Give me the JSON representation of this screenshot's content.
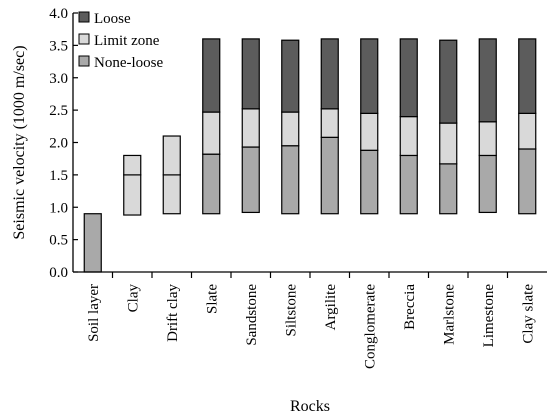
{
  "chart_data": {
    "type": "bar",
    "stacked": true,
    "xlabel": "Rocks",
    "ylabel": "Seismic velocity (1000 m/sec)",
    "ylim": [
      0,
      4.0
    ],
    "yticks": [
      "0.0",
      "0.5",
      "1.0",
      "1.5",
      "2.0",
      "2.5",
      "3.0",
      "3.5",
      "4.0"
    ],
    "grid": false,
    "legend_position": "top-left",
    "categories": [
      "Soil layer",
      "Clay",
      "Drift clay",
      "Slate",
      "Sandstone",
      "Siltstone",
      "Argilite",
      "Conglomerate",
      "Breccia",
      "Marlstone",
      "Limestone",
      "Clay slate"
    ],
    "legend": [
      {
        "name": "Loose",
        "color": "#5c5c5c"
      },
      {
        "name": "Limit zone",
        "color": "#d9d9d9"
      },
      {
        "name": "None-loose",
        "color": "#a9a9a9"
      }
    ],
    "bars": [
      {
        "segments": [
          {
            "series": "None-loose",
            "from": 0.0,
            "to": 0.9
          }
        ]
      },
      {
        "segments": [
          {
            "series": "Limit zone",
            "from": 0.88,
            "to": 1.5
          },
          {
            "series": "Limit zone",
            "from": 1.5,
            "to": 1.8
          }
        ]
      },
      {
        "segments": [
          {
            "series": "Limit zone",
            "from": 0.9,
            "to": 1.5
          },
          {
            "series": "Limit zone",
            "from": 1.5,
            "to": 2.1
          }
        ]
      },
      {
        "segments": [
          {
            "series": "None-loose",
            "from": 0.9,
            "to": 1.82
          },
          {
            "series": "Limit zone",
            "from": 1.82,
            "to": 2.47
          },
          {
            "series": "Loose",
            "from": 2.47,
            "to": 3.6
          }
        ]
      },
      {
        "segments": [
          {
            "series": "None-loose",
            "from": 0.92,
            "to": 1.93
          },
          {
            "series": "Limit zone",
            "from": 1.93,
            "to": 2.52
          },
          {
            "series": "Loose",
            "from": 2.52,
            "to": 3.6
          }
        ]
      },
      {
        "segments": [
          {
            "series": "None-loose",
            "from": 0.9,
            "to": 1.95
          },
          {
            "series": "Limit zone",
            "from": 1.95,
            "to": 2.47
          },
          {
            "series": "Loose",
            "from": 2.47,
            "to": 3.58
          }
        ]
      },
      {
        "segments": [
          {
            "series": "None-loose",
            "from": 0.9,
            "to": 2.08
          },
          {
            "series": "Limit zone",
            "from": 2.08,
            "to": 2.52
          },
          {
            "series": "Loose",
            "from": 2.52,
            "to": 3.6
          }
        ]
      },
      {
        "segments": [
          {
            "series": "None-loose",
            "from": 0.9,
            "to": 1.88
          },
          {
            "series": "Limit zone",
            "from": 1.88,
            "to": 2.45
          },
          {
            "series": "Loose",
            "from": 2.45,
            "to": 3.6
          }
        ]
      },
      {
        "segments": [
          {
            "series": "None-loose",
            "from": 0.9,
            "to": 1.8
          },
          {
            "series": "Limit zone",
            "from": 1.8,
            "to": 2.4
          },
          {
            "series": "Loose",
            "from": 2.4,
            "to": 3.6
          }
        ]
      },
      {
        "segments": [
          {
            "series": "None-loose",
            "from": 0.9,
            "to": 1.67
          },
          {
            "series": "Limit zone",
            "from": 1.67,
            "to": 2.3
          },
          {
            "series": "Loose",
            "from": 2.3,
            "to": 3.58
          }
        ]
      },
      {
        "segments": [
          {
            "series": "None-loose",
            "from": 0.92,
            "to": 1.8
          },
          {
            "series": "Limit zone",
            "from": 1.8,
            "to": 2.32
          },
          {
            "series": "Loose",
            "from": 2.32,
            "to": 3.6
          }
        ]
      },
      {
        "segments": [
          {
            "series": "None-loose",
            "from": 0.9,
            "to": 1.9
          },
          {
            "series": "Limit zone",
            "from": 1.9,
            "to": 2.45
          },
          {
            "series": "Loose",
            "from": 2.45,
            "to": 3.6
          }
        ]
      }
    ]
  }
}
